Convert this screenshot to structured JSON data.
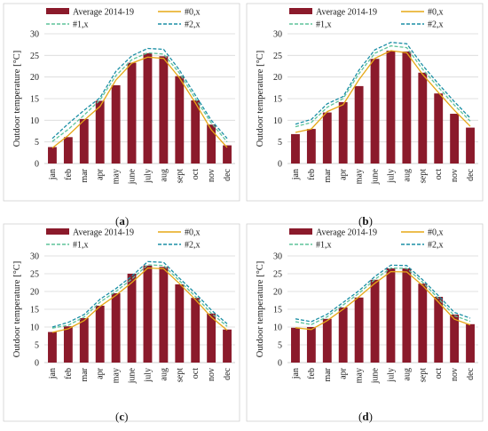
{
  "chart_data": [
    {
      "type": "bar",
      "panel_label": "a",
      "categories": [
        "jan",
        "feb",
        "mar",
        "apr",
        "may",
        "june",
        "july",
        "aug",
        "sept",
        "oct",
        "nov",
        "dec"
      ],
      "ylabel": "Outdoor temperature [°C]",
      "ylim": [
        0,
        30
      ],
      "yticks": [
        0,
        5,
        10,
        15,
        20,
        25,
        30
      ],
      "grid": true,
      "legend": "top",
      "series": [
        {
          "name": "Average 2014-19",
          "kind": "bar",
          "color": "#8b1a2b",
          "values": [
            3.8,
            6.1,
            10.3,
            14.5,
            18.1,
            23.3,
            25.5,
            24.8,
            20.2,
            14.6,
            9.0,
            4.2
          ]
        },
        {
          "name": "#0,x",
          "kind": "line",
          "color": "#e6a817",
          "dash": "solid",
          "values": [
            3.6,
            6.5,
            10.0,
            13.2,
            19.3,
            23.2,
            24.6,
            24.3,
            19.8,
            14.0,
            7.8,
            3.7
          ]
        },
        {
          "name": "#1,x",
          "kind": "line",
          "color": "#5ec39a",
          "dash": "dashed",
          "values": [
            5.1,
            7.9,
            11.2,
            14.7,
            20.3,
            24.0,
            25.6,
            25.3,
            20.9,
            15.0,
            9.4,
            5.0
          ]
        },
        {
          "name": "#2,x",
          "kind": "line",
          "color": "#1b8fa5",
          "dash": "dashed",
          "values": [
            5.8,
            9.2,
            12.3,
            15.2,
            21.3,
            24.9,
            26.6,
            26.4,
            21.6,
            15.8,
            10.0,
            5.8
          ]
        }
      ]
    },
    {
      "type": "bar",
      "panel_label": "b",
      "categories": [
        "jan",
        "feb",
        "mar",
        "apr",
        "may",
        "june",
        "july",
        "aug",
        "sept",
        "oct",
        "nov",
        "dec"
      ],
      "ylabel": "Outdoor temperature [°C]",
      "ylim": [
        0,
        30
      ],
      "yticks": [
        0,
        5,
        10,
        15,
        20,
        25,
        30
      ],
      "grid": true,
      "legend": "top",
      "series": [
        {
          "name": "Average 2014-19",
          "kind": "bar",
          "color": "#8b1a2b",
          "values": [
            6.8,
            8.0,
            11.8,
            14.2,
            17.9,
            24.2,
            26.1,
            25.9,
            21.0,
            16.2,
            11.5,
            8.3
          ]
        },
        {
          "name": "#0,x",
          "kind": "line",
          "color": "#e6a817",
          "dash": "solid",
          "values": [
            7.2,
            8.0,
            12.0,
            13.6,
            19.4,
            24.3,
            26.1,
            25.6,
            20.6,
            16.4,
            12.3,
            8.6
          ]
        },
        {
          "name": "#1,x",
          "kind": "line",
          "color": "#5ec39a",
          "dash": "dashed",
          "values": [
            8.5,
            9.5,
            13.0,
            15.0,
            20.8,
            25.5,
            27.2,
            26.8,
            21.8,
            17.6,
            13.5,
            9.8
          ]
        },
        {
          "name": "#2,x",
          "kind": "line",
          "color": "#1b8fa5",
          "dash": "dashed",
          "values": [
            9.1,
            10.2,
            13.8,
            15.5,
            21.6,
            26.3,
            28.0,
            27.7,
            22.7,
            18.4,
            14.3,
            10.5
          ]
        }
      ]
    },
    {
      "type": "bar",
      "panel_label": "c",
      "categories": [
        "jan",
        "feb",
        "mar",
        "apr",
        "may",
        "june",
        "july",
        "aug",
        "sept",
        "oct",
        "nov",
        "dec"
      ],
      "ylabel": "Outdoor temperature [°C]",
      "ylim": [
        0,
        30
      ],
      "yticks": [
        0,
        5,
        10,
        15,
        20,
        25,
        30
      ],
      "grid": true,
      "legend": "top",
      "series": [
        {
          "name": "Average 2014-19",
          "kind": "bar",
          "color": "#8b1a2b",
          "values": [
            8.6,
            10.2,
            12.5,
            16.0,
            19.5,
            25.0,
            27.3,
            26.9,
            22.0,
            18.2,
            13.8,
            9.3
          ]
        },
        {
          "name": "#0,x",
          "kind": "line",
          "color": "#e6a817",
          "dash": "solid",
          "values": [
            8.5,
            9.5,
            11.8,
            15.8,
            18.9,
            22.5,
            26.6,
            26.4,
            22.2,
            17.7,
            12.8,
            9.1
          ]
        },
        {
          "name": "#1,x",
          "kind": "line",
          "color": "#5ec39a",
          "dash": "dashed",
          "values": [
            9.7,
            10.5,
            12.8,
            17.0,
            20.0,
            23.5,
            27.5,
            27.3,
            23.0,
            18.6,
            13.9,
            10.2
          ]
        },
        {
          "name": "#2,x",
          "kind": "line",
          "color": "#1b8fa5",
          "dash": "dashed",
          "values": [
            10.0,
            11.3,
            13.5,
            17.8,
            20.8,
            24.3,
            28.4,
            28.2,
            23.7,
            19.5,
            14.8,
            10.9
          ]
        }
      ]
    },
    {
      "type": "bar",
      "panel_label": "d",
      "categories": [
        "jan",
        "feb",
        "mar",
        "apr",
        "may",
        "june",
        "july",
        "aug",
        "sept",
        "oct",
        "nov",
        "dec"
      ],
      "ylabel": "Outdoor temperature [°C]",
      "ylim": [
        0,
        30
      ],
      "yticks": [
        0,
        5,
        10,
        15,
        20,
        25,
        30
      ],
      "grid": true,
      "legend": "top",
      "series": [
        {
          "name": "Average 2014-19",
          "kind": "bar",
          "color": "#8b1a2b",
          "values": [
            9.8,
            10.0,
            12.3,
            15.5,
            18.3,
            23.3,
            26.5,
            26.5,
            22.2,
            18.5,
            13.5,
            10.8
          ]
        },
        {
          "name": "#0,x",
          "kind": "line",
          "color": "#e6a817",
          "dash": "solid",
          "values": [
            9.8,
            9.3,
            11.8,
            15.0,
            18.5,
            22.3,
            25.6,
            25.5,
            21.7,
            17.0,
            12.2,
            10.6
          ]
        },
        {
          "name": "#1,x",
          "kind": "line",
          "color": "#5ec39a",
          "dash": "dashed",
          "values": [
            11.5,
            10.7,
            12.9,
            16.2,
            19.5,
            23.4,
            26.6,
            26.5,
            22.6,
            18.0,
            13.2,
            11.6
          ]
        },
        {
          "name": "#2,x",
          "kind": "line",
          "color": "#1b8fa5",
          "dash": "dashed",
          "values": [
            12.3,
            11.5,
            13.6,
            16.9,
            20.2,
            24.2,
            27.4,
            27.3,
            23.3,
            18.8,
            14.1,
            12.5
          ]
        }
      ]
    }
  ],
  "captions": [
    "(a)",
    "(b)",
    "(c)",
    "(d)"
  ],
  "colors": {
    "axis": "#bfbfbf",
    "grid": "#d9d9d9",
    "text": "#1a1a1a"
  }
}
